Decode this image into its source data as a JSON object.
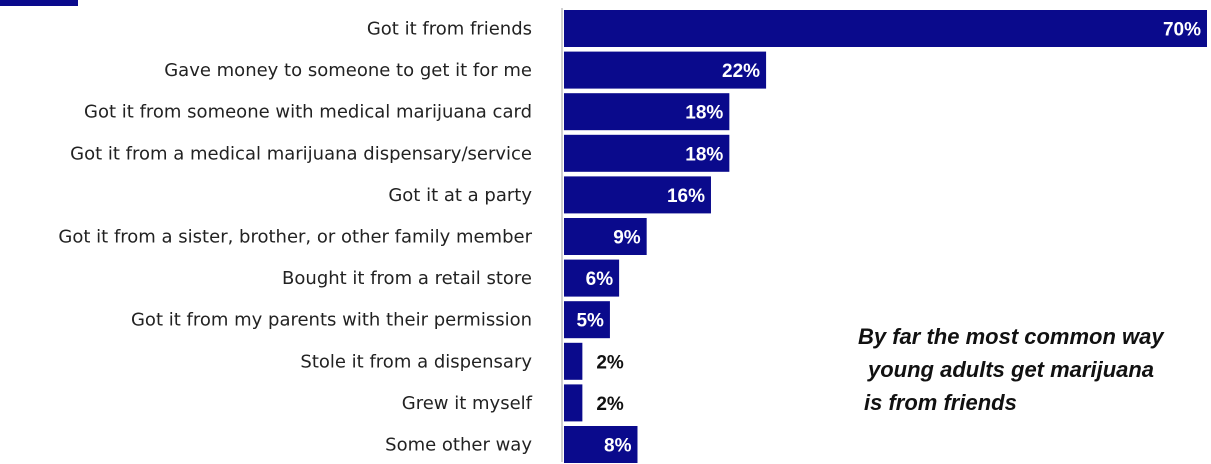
{
  "chart_data": {
    "type": "bar",
    "orientation": "horizontal",
    "categories": [
      "Got it from friends",
      "Gave money to someone to get it for me",
      "Got it from someone with medical marijuana card",
      "Got it from a medical marijuana dispensary/service",
      "Got it at a party",
      "Got it from a sister, brother, or other family member",
      "Bought it from a retail store",
      "Got it from my parents with their permission",
      "Stole it from a dispensary",
      "Grew it myself",
      "Some other way"
    ],
    "values": [
      70,
      22,
      18,
      18,
      16,
      9,
      6,
      5,
      2,
      2,
      8
    ],
    "value_labels": [
      "70%",
      "22%",
      "18%",
      "18%",
      "16%",
      "9%",
      "6%",
      "5%",
      "2%",
      "2%",
      "8%"
    ],
    "xlim": [
      0,
      70
    ],
    "bar_color": "#0a0a8c",
    "grid": false,
    "legend": "none",
    "annotation": {
      "lines": [
        "By far the most common way",
        "young adults get marijuana",
        "is from friends"
      ]
    }
  },
  "colors": {
    "accent": "#0a0a8c",
    "axis": "#c0c0c0"
  }
}
